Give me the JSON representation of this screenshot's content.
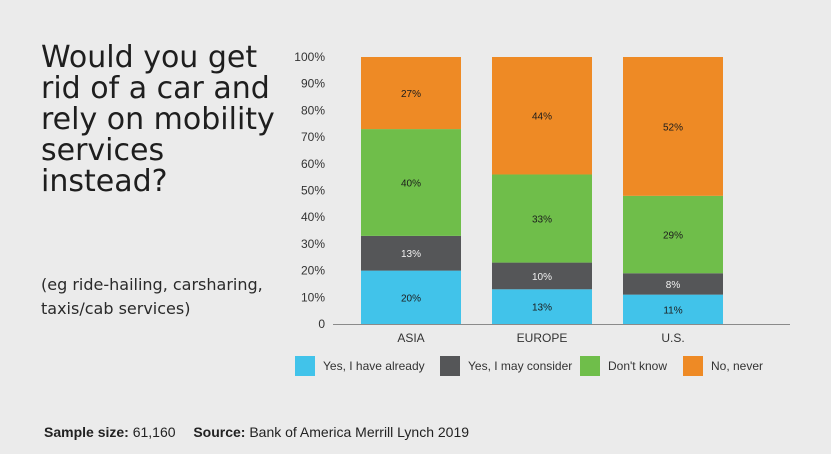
{
  "heading": "Would you get rid of a car and rely on mobility services instead?",
  "subheading": "(eg ride-hailing, carsharing, taxis/cab services)",
  "footer": {
    "sample_label": "Sample size:",
    "sample_value": "61,160",
    "source_label": "Source:",
    "source_value": "Bank of America Merrill Lynch 2019"
  },
  "chart_data": {
    "type": "bar",
    "stacked": true,
    "categories": [
      "ASIA",
      "EUROPE",
      "U.S."
    ],
    "series": [
      {
        "name": "Yes, I have already",
        "color": "#41c3ea",
        "label_color": "#1c1c1c",
        "values": [
          20,
          13,
          11
        ]
      },
      {
        "name": "Yes, I may consider",
        "color": "#555658",
        "label_color": "#f2f2f2",
        "values": [
          13,
          10,
          8
        ]
      },
      {
        "name": "Don't know",
        "color": "#6fbe4a",
        "label_color": "#1c1c1c",
        "values": [
          40,
          33,
          29
        ]
      },
      {
        "name": "No, never",
        "color": "#ee8a25",
        "label_color": "#1c1c1c",
        "values": [
          27,
          44,
          52
        ]
      }
    ],
    "y_ticks": [
      "0",
      "10%",
      "20%",
      "30%",
      "40%",
      "50%",
      "60%",
      "70%",
      "80%",
      "90%",
      "100%"
    ],
    "ylim": [
      0,
      100
    ],
    "grid": false,
    "legend_position": "bottom",
    "value_suffix": "%"
  }
}
